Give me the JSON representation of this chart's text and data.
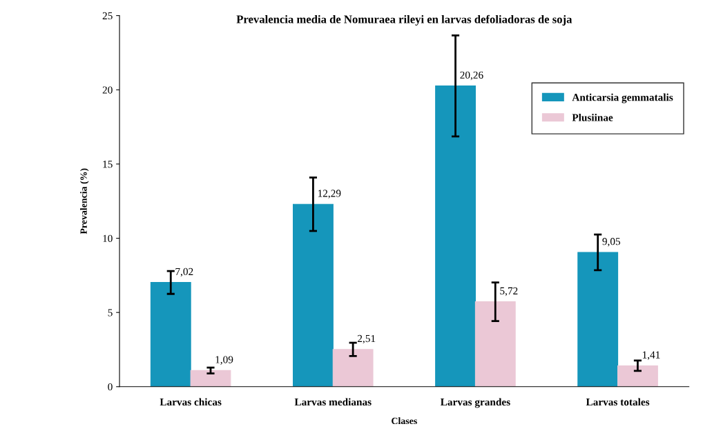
{
  "chart_data": {
    "type": "bar",
    "title": "Prevalencia media de Nomuraea rileyi en larvas defoliadoras de soja",
    "xlabel": "Clases",
    "ylabel": "Prevalencia (%)",
    "categories": [
      "Larvas chicas",
      "Larvas medianas",
      "Larvas grandes",
      "Larvas totales"
    ],
    "series": [
      {
        "name": "Anticarsia gemmatalis",
        "color": "#1596bb",
        "values": [
          7.02,
          12.29,
          20.26,
          9.05
        ],
        "value_labels": [
          "7,02",
          "12,29",
          "20,26",
          "9,05"
        ],
        "errors": [
          0.77,
          1.8,
          3.4,
          1.2
        ]
      },
      {
        "name": "Plusiinae",
        "color": "#ebc8d6",
        "values": [
          1.09,
          2.51,
          5.72,
          1.41
        ],
        "value_labels": [
          "1,09",
          "2,51",
          "5,72",
          "1,41"
        ],
        "errors": [
          0.2,
          0.45,
          1.3,
          0.35
        ]
      }
    ],
    "ylim": [
      0,
      25
    ],
    "yticks": [
      0,
      5,
      10,
      15,
      20,
      25
    ],
    "grid": false,
    "legend": "right"
  }
}
